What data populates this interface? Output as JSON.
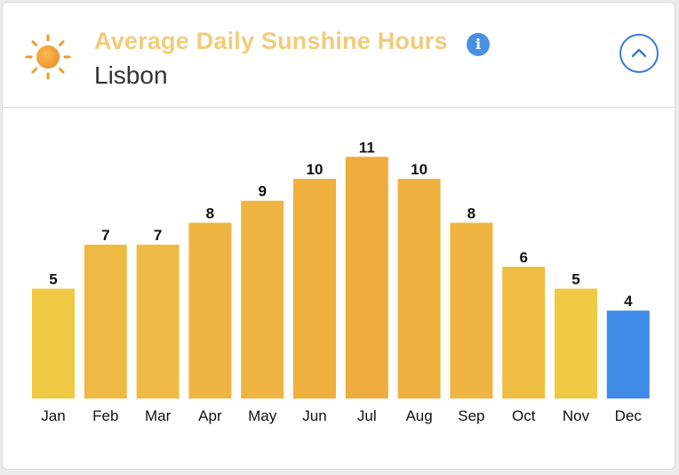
{
  "header": {
    "title": "Average Daily Sunshine Hours",
    "subtitle": "Lisbon",
    "icons": [
      "sun-icon",
      "info-icon",
      "chevron-up-icon"
    ],
    "info_glyph": "i"
  },
  "colors": {
    "title": "#f0cc7c",
    "highlight": "#3f8ae6",
    "info": "#4a90e2",
    "collapse": "#3a77d8"
  },
  "chart_data": {
    "type": "bar",
    "title": "Average Daily Sunshine Hours",
    "xlabel": "",
    "ylabel": "",
    "categories": [
      "Jan",
      "Feb",
      "Mar",
      "Apr",
      "May",
      "Jun",
      "Jul",
      "Aug",
      "Sep",
      "Oct",
      "Nov",
      "Dec"
    ],
    "values": [
      5,
      7,
      7,
      8,
      9,
      10,
      11,
      10,
      8,
      6,
      5,
      4
    ],
    "bar_colors": [
      "#efc944",
      "#eeba44",
      "#eeba44",
      "#efb540",
      "#efb540",
      "#efb03e",
      "#eeac3e",
      "#efb03e",
      "#efb540",
      "#eebd42",
      "#efc944",
      "#3f8ae6"
    ],
    "highlighted_category": "Dec",
    "data_labels": true,
    "grid": false,
    "legend": "none"
  }
}
